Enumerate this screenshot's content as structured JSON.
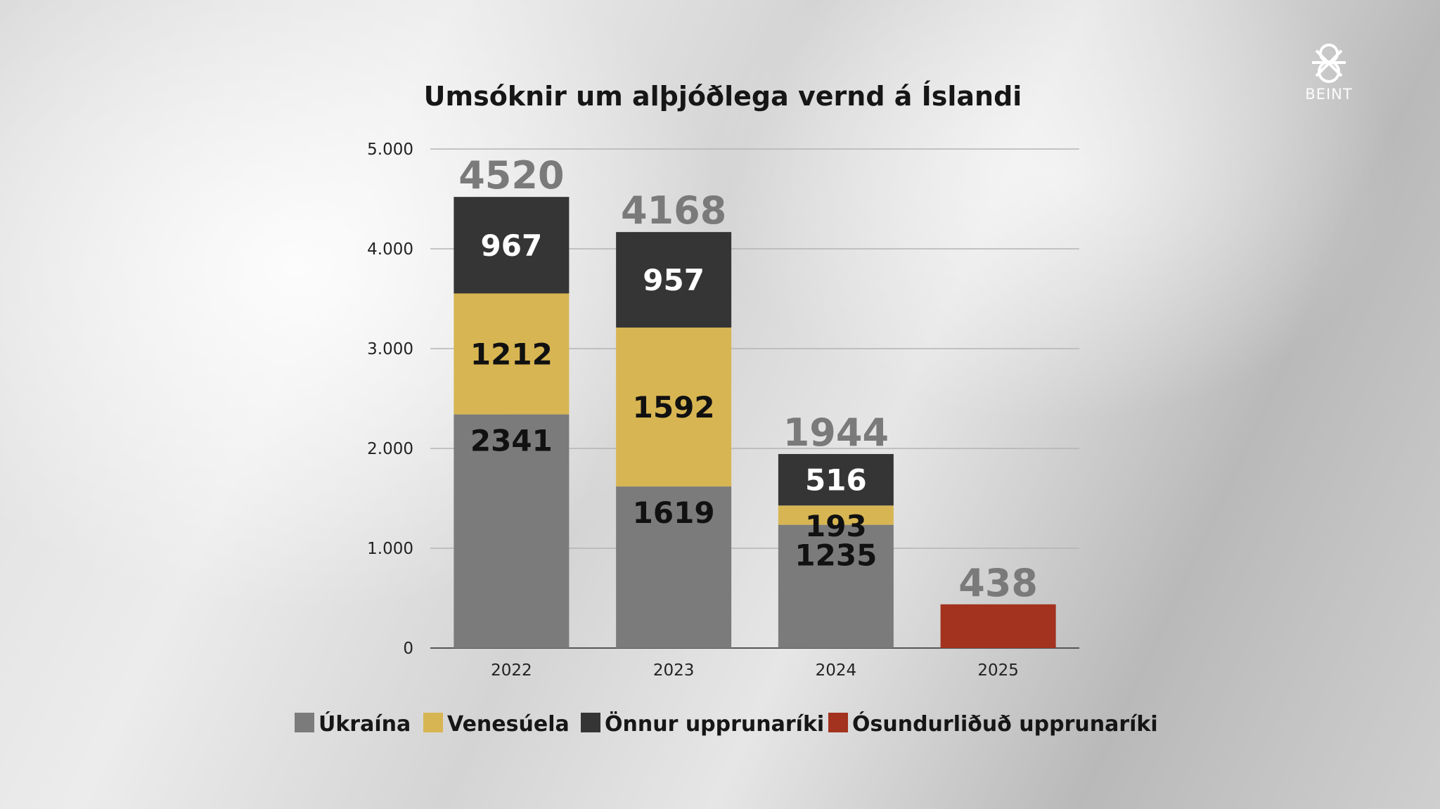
{
  "logo": {
    "text": "BEINT",
    "icon": "ruv-logo-icon"
  },
  "chart_data": {
    "type": "bar",
    "stacked": true,
    "title": "Umsóknir um alþjóðlega vernd á Íslandi",
    "categories": [
      "2022",
      "2023",
      "2024",
      "2025"
    ],
    "ylim": [
      0,
      5000
    ],
    "yticks": [
      0,
      1000,
      2000,
      3000,
      4000,
      5000
    ],
    "ytick_labels": [
      "0",
      "1.000",
      "2.000",
      "3.000",
      "4.000",
      "5.000"
    ],
    "grid": true,
    "legend_position": "bottom",
    "series": [
      {
        "name": "Úkraína",
        "color": "#7b7b7b",
        "values": [
          2341,
          1619,
          1235,
          0
        ],
        "labels": [
          "2341",
          "1619",
          "1235",
          ""
        ],
        "label_color": "#111111"
      },
      {
        "name": "Venesúela",
        "color": "#d7b552",
        "values": [
          1212,
          1592,
          193,
          0
        ],
        "labels": [
          "1212",
          "1592",
          "193",
          ""
        ],
        "label_color": "#111111"
      },
      {
        "name": "Önnur upprunaríki",
        "color": "#353535",
        "values": [
          967,
          957,
          516,
          0
        ],
        "labels": [
          "967",
          "957",
          "516",
          ""
        ],
        "label_color": "#ffffff"
      },
      {
        "name": "Ósundurliðuð upprunaríki",
        "color": "#a3321f",
        "values": [
          0,
          0,
          0,
          438
        ],
        "labels": [
          "",
          "",
          "",
          ""
        ],
        "label_color": "#ffffff"
      }
    ],
    "totals": [
      4520,
      4168,
      1944,
      438
    ],
    "total_labels": [
      "4520",
      "4168",
      "1944",
      "438"
    ]
  }
}
